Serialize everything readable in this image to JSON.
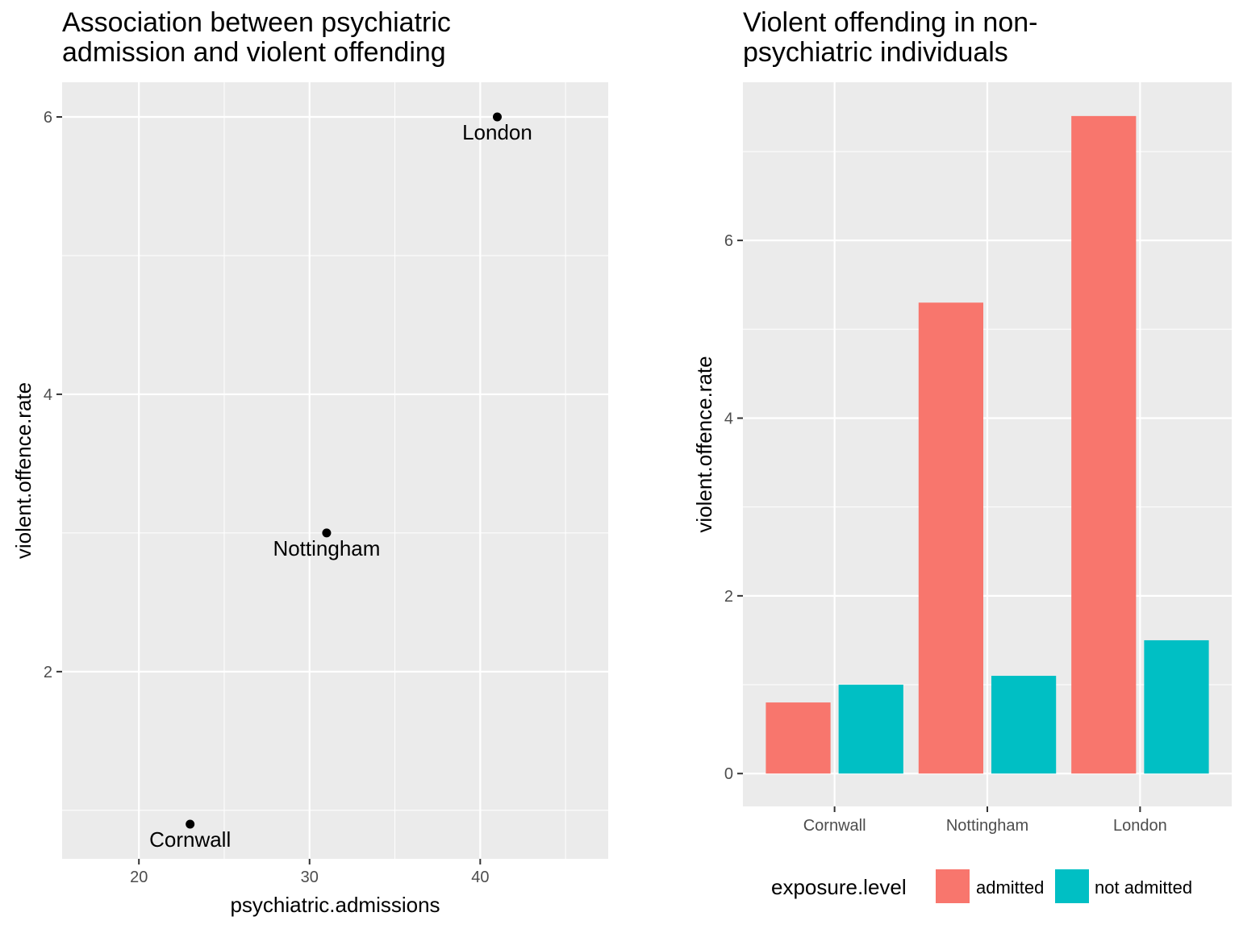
{
  "chart_data": [
    {
      "type": "scatter",
      "title_lines": [
        "Association between psychiatric",
        "admission and violent offending"
      ],
      "xlabel": "psychiatric.admissions",
      "ylabel": "violent.offence.rate",
      "xlim": [
        15.5,
        47.5
      ],
      "ylim": [
        0.65,
        6.25
      ],
      "xticks": [
        20,
        30,
        40
      ],
      "yticks": [
        2,
        4,
        6
      ],
      "points": [
        {
          "label": "Cornwall",
          "x": 23,
          "y": 0.9
        },
        {
          "label": "Nottingham",
          "x": 31,
          "y": 3
        },
        {
          "label": "London",
          "x": 41,
          "y": 6
        }
      ],
      "grid": true
    },
    {
      "type": "bar",
      "title_lines": [
        "Violent offending in non-",
        "psychiatric individuals"
      ],
      "xlabel": "",
      "ylabel": "violent.offence.rate",
      "ylim": [
        -0.37,
        7.78
      ],
      "yticks": [
        0,
        2,
        4,
        6
      ],
      "categories": [
        "Cornwall",
        "Nottingham",
        "London"
      ],
      "legend_title": "exposure.level",
      "legend_position": "bottom",
      "series": [
        {
          "name": "admitted",
          "color": "#F8766D",
          "values": [
            0.8,
            5.3,
            7.4
          ]
        },
        {
          "name": "not admitted",
          "color": "#00BFC4",
          "values": [
            1.0,
            1.1,
            1.5
          ]
        }
      ],
      "grid": true
    }
  ]
}
